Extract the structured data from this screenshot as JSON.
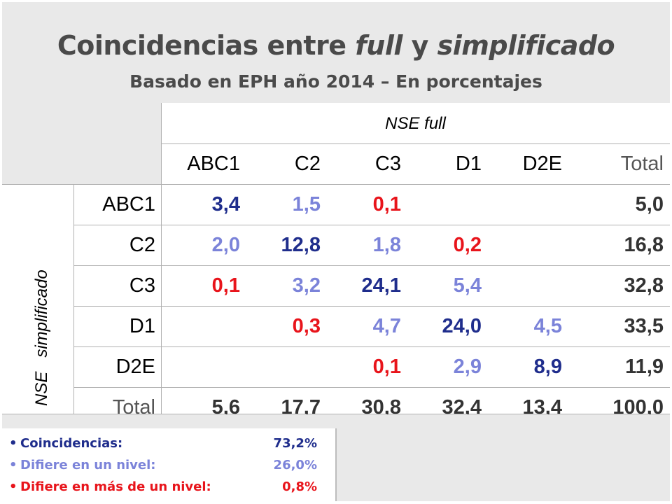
{
  "title": {
    "prefix": "Coincidencias entre ",
    "italic1": "full",
    "mid": " y ",
    "italic2": "simplificado"
  },
  "subtitle": "Basado en EPH año 2014 – En porcentajes",
  "colors": {
    "dark_blue": "#1f2d8c",
    "light_blue": "#7b83d9",
    "red": "#e8141b",
    "text_dark": "#333333",
    "header_gray": "#e9e9e9"
  },
  "table": {
    "col_group_label": "NSE   full",
    "row_group_label": "NSE   simplificado",
    "columns": [
      "ABC1",
      "C2",
      "C3",
      "D1",
      "D2E",
      "Total"
    ],
    "rows": [
      {
        "label": "ABC1",
        "cells": [
          "3,4",
          "1,5",
          "0,1",
          "",
          "",
          "5,0"
        ],
        "tones": [
          "dark",
          "light",
          "red",
          "",
          "",
          "total"
        ]
      },
      {
        "label": "C2",
        "cells": [
          "2,0",
          "12,8",
          "1,8",
          "0,2",
          "",
          "16,8"
        ],
        "tones": [
          "light",
          "dark",
          "light",
          "red",
          "",
          "total"
        ]
      },
      {
        "label": "C3",
        "cells": [
          "0,1",
          "3,2",
          "24,1",
          "5,4",
          "",
          "32,8"
        ],
        "tones": [
          "red",
          "light",
          "dark",
          "light",
          "",
          "total"
        ]
      },
      {
        "label": "D1",
        "cells": [
          "",
          "0,3",
          "4,7",
          "24,0",
          "4,5",
          "33,5"
        ],
        "tones": [
          "",
          "red",
          "light",
          "dark",
          "light",
          "total"
        ]
      },
      {
        "label": "D2E",
        "cells": [
          "",
          "",
          "0,1",
          "2,9",
          "8,9",
          "11,9"
        ],
        "tones": [
          "",
          "",
          "red",
          "light",
          "dark",
          "total"
        ]
      },
      {
        "label": "Total",
        "cells": [
          "5,6",
          "17,7",
          "30,8",
          "32,4",
          "13,4",
          "100,0"
        ],
        "tones": [
          "total",
          "total",
          "total",
          "total",
          "total",
          "total"
        ]
      }
    ]
  },
  "legend": [
    {
      "label": "Coincidencias:",
      "value": "73,2%",
      "tone": "dark"
    },
    {
      "label": "Difiere en un nivel:",
      "value": "26,0%",
      "tone": "light"
    },
    {
      "label": "Difiere en más de un nivel:",
      "value": "0,8%",
      "tone": "red"
    }
  ]
}
